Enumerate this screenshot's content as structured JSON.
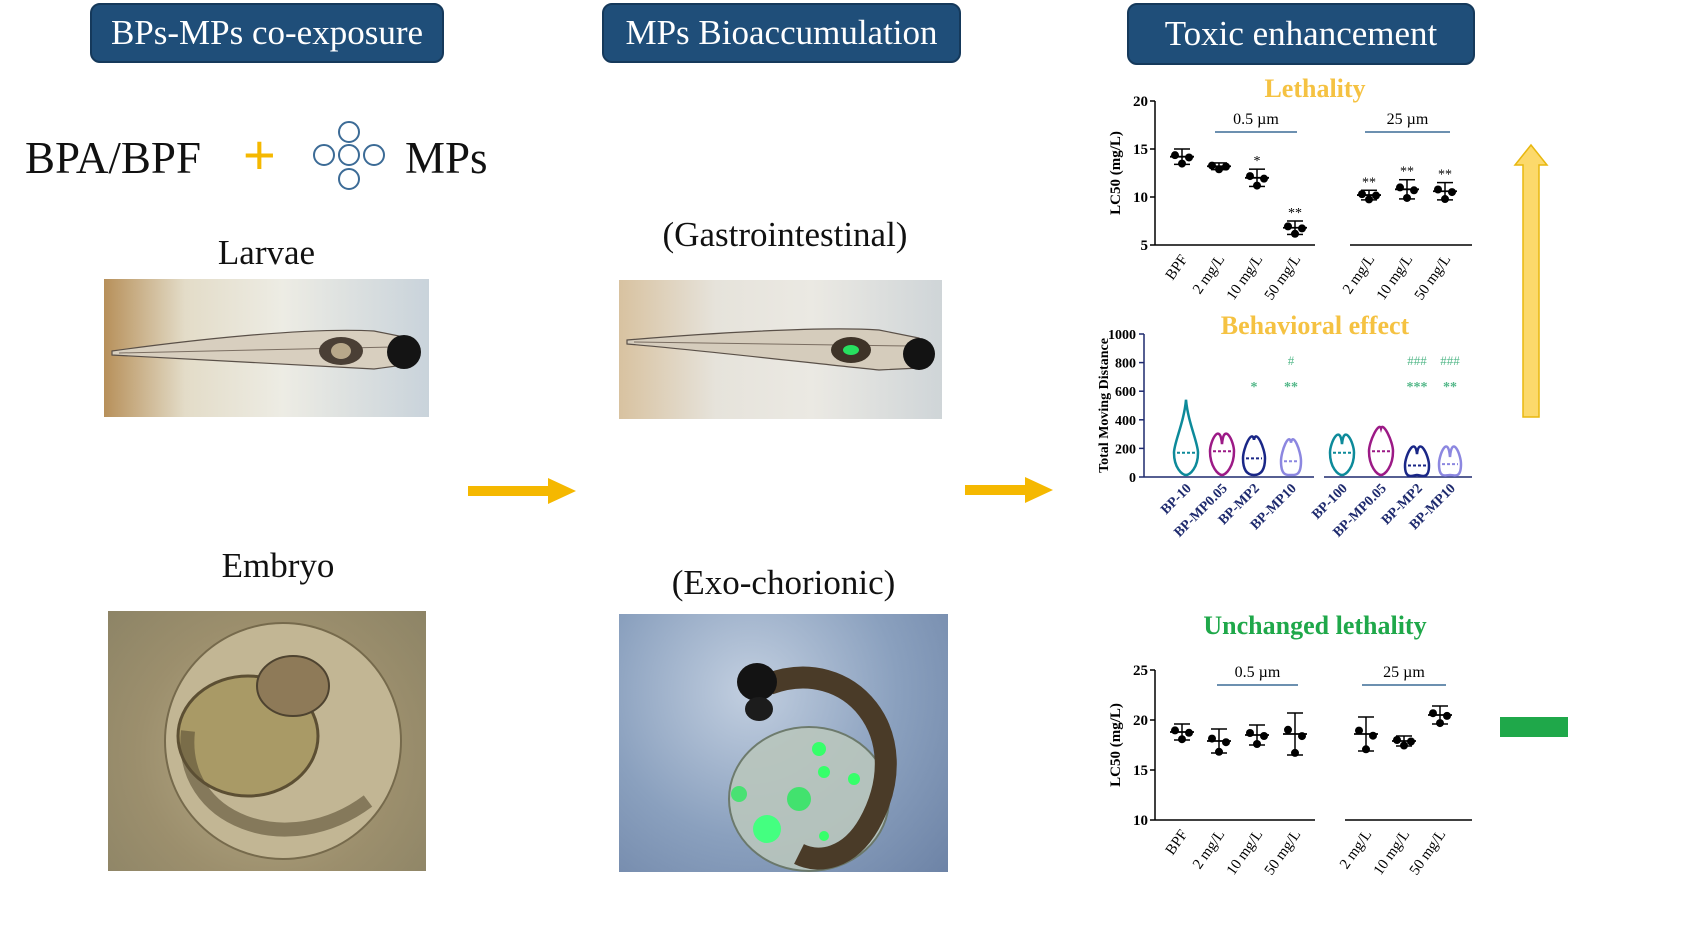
{
  "headers": {
    "col1": "BPs-MPs co-exposure",
    "col2": "MPs Bioaccumulation",
    "col3": "Toxic enhancement"
  },
  "legend": {
    "bpa_bpf": "BPA/BPF",
    "plus": "+",
    "mps": "MPs"
  },
  "labels": {
    "larvae": "Larvae",
    "embryo": "Embryo",
    "gastro": "(Gastrointestinal)",
    "exo": "(Exo-chorionic)"
  },
  "colors": {
    "header_bg": "#1f4e79",
    "orange": "#f5c242",
    "green": "#1fa84a",
    "teal": "#52b788"
  },
  "chart_data": [
    {
      "type": "scatter",
      "title": "Lethality",
      "ylabel": "LC50 (mg/L)",
      "ylim": [
        5,
        20
      ],
      "yticks": [
        "5",
        "10",
        "15",
        "20"
      ],
      "groups": [
        "0.5 µm",
        "25 µm"
      ],
      "categories": [
        "BPF",
        "2 mg/L",
        "10 mg/L",
        "50 mg/L",
        "2 mg/L",
        "10 mg/L",
        "50 mg/L"
      ],
      "means": [
        14.2,
        13.2,
        12.0,
        6.8,
        10.2,
        10.8,
        10.6
      ],
      "sig": [
        "",
        "",
        "*",
        "**",
        "**",
        "**",
        "**"
      ]
    },
    {
      "type": "violin",
      "title": "Behavioral effect",
      "ylabel": "Total Moving Distance",
      "ylim": [
        0,
        1000
      ],
      "yticks": [
        "0",
        "200",
        "400",
        "600",
        "800",
        "1000"
      ],
      "categories": [
        "BP-10",
        "BP-MP0.05",
        "BP-MP2",
        "BP-MP10",
        "BP-100",
        "BP-MP0.05",
        "BP-MP2",
        "BP-MP10"
      ],
      "medians": [
        170,
        180,
        130,
        110,
        170,
        180,
        80,
        90
      ],
      "sig_star": [
        "",
        "",
        "*",
        "**",
        "",
        "",
        "***",
        "**"
      ],
      "sig_hash": [
        "",
        "",
        "",
        "#",
        "",
        "",
        "###",
        "###"
      ]
    },
    {
      "type": "scatter",
      "title": "Unchanged lethality",
      "ylabel": "LC50 (mg/L)",
      "ylim": [
        10,
        25
      ],
      "yticks": [
        "10",
        "15",
        "20",
        "25"
      ],
      "groups": [
        "0.5 µm",
        "25 µm"
      ],
      "categories": [
        "BPF",
        "2 mg/L",
        "10 mg/L",
        "50 mg/L",
        "2 mg/L",
        "10 mg/L",
        "50 mg/L"
      ],
      "means": [
        18.8,
        17.9,
        18.5,
        18.6,
        18.6,
        17.9,
        20.5
      ]
    }
  ]
}
